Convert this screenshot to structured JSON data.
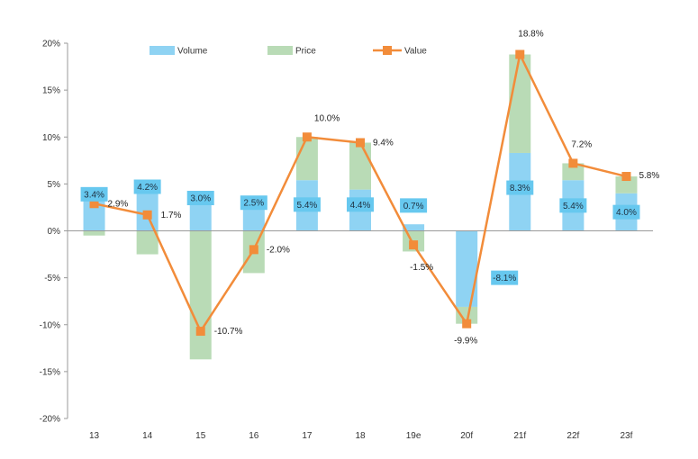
{
  "chart_data": {
    "type": "bar",
    "categories": [
      "13",
      "14",
      "15",
      "16",
      "17",
      "18",
      "19e",
      "20f",
      "21f",
      "22f",
      "23f"
    ],
    "ylim": [
      -20,
      20
    ],
    "yticks": [
      20,
      15,
      10,
      5,
      0,
      -5,
      -10,
      -15,
      -20
    ],
    "ytick_labels": [
      "20%",
      "15%",
      "10%",
      "5%",
      "0%",
      "-5%",
      "-10%",
      "-15%",
      "-20%"
    ],
    "stacked": true,
    "series": [
      {
        "name": "Volume",
        "kind": "bar",
        "color": "#8fd3f3",
        "label_bg": "#67c8ef",
        "values": [
          3.4,
          4.2,
          3.0,
          2.5,
          5.4,
          4.4,
          0.7,
          -8.1,
          8.3,
          5.4,
          4.0
        ],
        "labels": [
          "3.4%",
          "4.2%",
          "3.0%",
          "2.5%",
          "5.4%",
          "4.4%",
          "0.7%",
          "-8.1%",
          "8.3%",
          "5.4%",
          "4.0%"
        ]
      },
      {
        "name": "Price",
        "kind": "bar",
        "color": "#b9dbb6",
        "values": [
          -0.5,
          -2.5,
          -13.7,
          -4.5,
          4.6,
          5.0,
          -2.2,
          -1.8,
          10.5,
          1.8,
          1.8
        ]
      },
      {
        "name": "Value",
        "kind": "line",
        "color": "#f28c3a",
        "values": [
          2.9,
          1.7,
          -10.7,
          -2.0,
          10.0,
          9.4,
          -1.5,
          -9.9,
          18.8,
          7.2,
          5.8
        ],
        "labels": [
          "2.9%",
          "1.7%",
          "-10.7%",
          "-2.0%",
          "10.0%",
          "9.4%",
          "-1.5%",
          "-9.9%",
          "18.8%",
          "7.2%",
          "5.8%"
        ]
      }
    ],
    "legend": {
      "position": "top",
      "items": [
        "Volume",
        "Price",
        "Value"
      ]
    },
    "grid": false,
    "title": "",
    "xlabel": "",
    "ylabel": ""
  }
}
